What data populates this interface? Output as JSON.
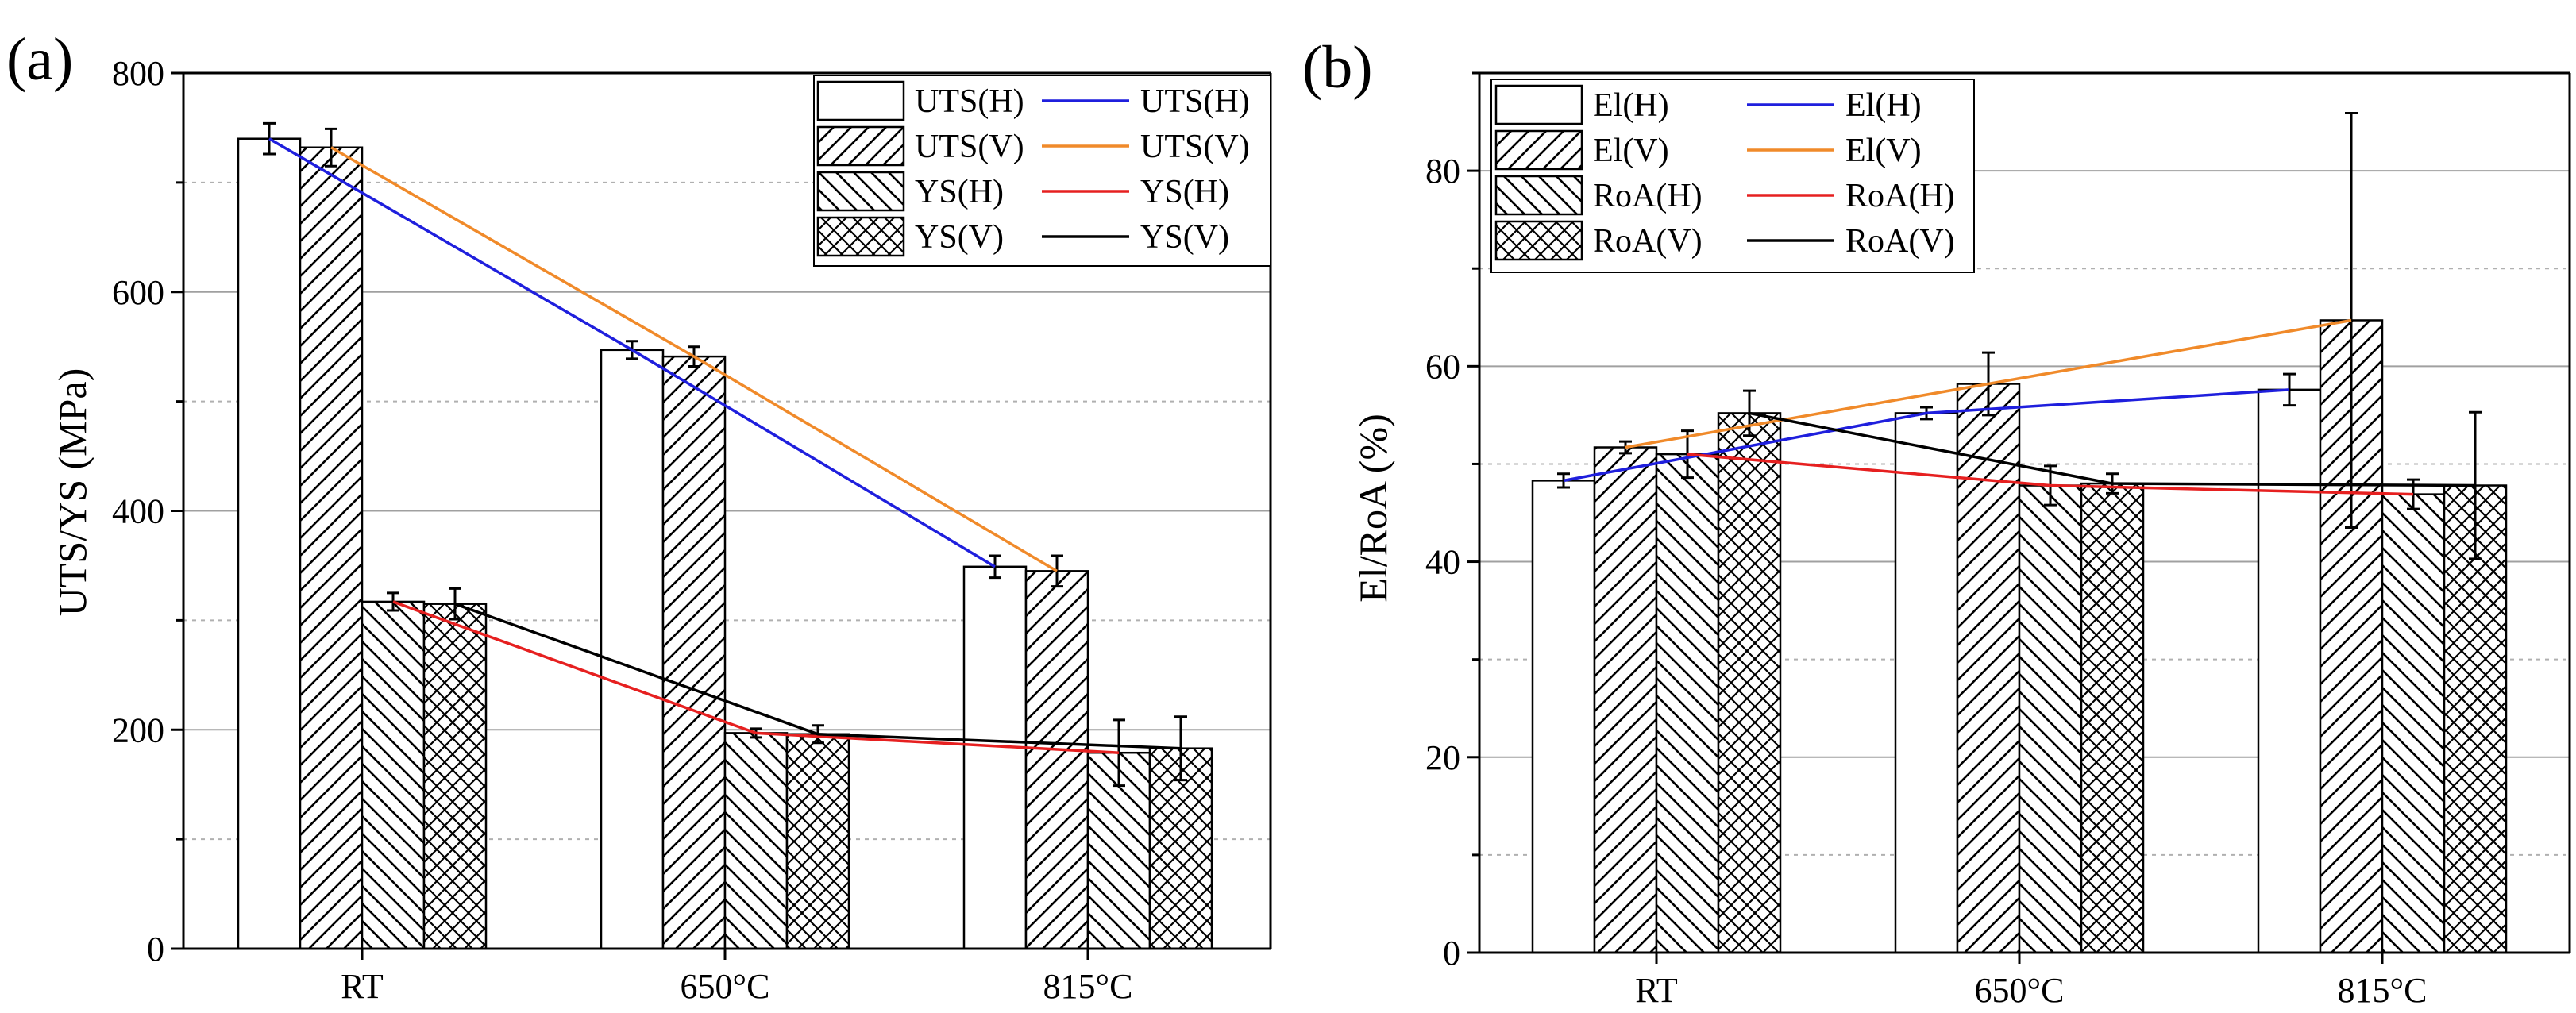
{
  "chart_data": [
    {
      "type": "bar",
      "panel_label": "(a)",
      "title": "",
      "xlabel": "",
      "ylabel": "UTS/YS (MPa)",
      "ylim": [
        0,
        800
      ],
      "yticks": [
        0,
        200,
        400,
        600,
        800
      ],
      "y_minor_step": 100,
      "grid": true,
      "legend_position": "top-right",
      "categories": [
        "RT",
        "650°C",
        "815°C"
      ],
      "series": [
        {
          "name": "UTS(H)",
          "pattern": "none",
          "values": [
            740,
            547,
            349
          ],
          "errors": [
            14,
            8,
            10
          ],
          "line_color": "#1f1fdd"
        },
        {
          "name": "UTS(V)",
          "pattern": "fdiag",
          "values": [
            732,
            541,
            345
          ],
          "errors": [
            17,
            9,
            14
          ],
          "line_color": "#f08a2a"
        },
        {
          "name": "YS(H)",
          "pattern": "bdiag",
          "values": [
            317,
            197,
            179
          ],
          "errors": [
            8,
            4,
            30
          ],
          "line_color": "#e62020"
        },
        {
          "name": "YS(V)",
          "pattern": "cross",
          "values": [
            315,
            196,
            183
          ],
          "errors": [
            14,
            8,
            29
          ],
          "line_color": "#000000"
        }
      ],
      "legend_bars": [
        "UTS(H)",
        "UTS(V)",
        "YS(H)",
        "YS(V)"
      ],
      "legend_lines": [
        "UTS(H)",
        "UTS(V)",
        "YS(H)",
        "YS(V)"
      ]
    },
    {
      "type": "bar",
      "panel_label": "(b)",
      "title": "",
      "xlabel": "",
      "ylabel": "El/RoA (%)",
      "ylim": [
        0,
        90
      ],
      "yticks": [
        0,
        20,
        40,
        60,
        80
      ],
      "y_minor_step": 10,
      "grid": true,
      "legend_position": "top-left",
      "categories": [
        "RT",
        "650°C",
        "815°C"
      ],
      "series": [
        {
          "name": "El(H)",
          "pattern": "none",
          "values": [
            48.3,
            55.2,
            57.6
          ],
          "errors": [
            0.7,
            0.6,
            1.6
          ],
          "line_color": "#1f1fdd"
        },
        {
          "name": "El(V)",
          "pattern": "fdiag",
          "values": [
            51.7,
            58.2,
            64.7
          ],
          "errors": [
            0.6,
            3.2,
            21.2
          ],
          "line_color": "#f08a2a"
        },
        {
          "name": "RoA(H)",
          "pattern": "bdiag",
          "values": [
            51.0,
            47.8,
            46.9
          ],
          "errors": [
            2.4,
            2.0,
            1.5
          ],
          "line_color": "#e62020"
        },
        {
          "name": "RoA(V)",
          "pattern": "cross",
          "values": [
            55.2,
            48.0,
            47.8
          ],
          "errors": [
            2.3,
            1.0,
            7.5
          ],
          "line_color": "#000000"
        }
      ],
      "legend_bars": [
        "El(H)",
        "El(V)",
        "RoA(H)",
        "RoA(V)"
      ],
      "legend_lines": [
        "El(H)",
        "El(V)",
        "RoA(H)",
        "RoA(V)"
      ]
    }
  ]
}
